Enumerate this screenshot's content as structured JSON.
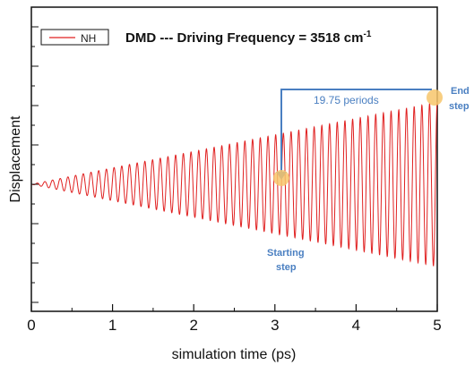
{
  "chart_data": {
    "type": "line",
    "title": "DMD --- Driving Frequency = 3518 cm",
    "title_superscript": "-1",
    "xlabel": "simulation time (ps)",
    "ylabel": "Displacement",
    "xlim": [
      0,
      5
    ],
    "x_ticks": [
      "0",
      "1",
      "2",
      "3",
      "4",
      "5"
    ],
    "y_tick_labels_visible": false,
    "legend": {
      "position": "top-left",
      "entries": [
        "NH"
      ]
    },
    "grid": false,
    "series": [
      {
        "name": "NH",
        "color": "#e02020",
        "kind": "driven oscillation with linearly growing amplitude",
        "x_start": 0,
        "x_end": 5,
        "oscillation_frequency_per_ps": 10.55,
        "relative_amplitude_start": 0,
        "relative_amplitude_end": 1
      }
    ],
    "annotations": {
      "period_label": "19.75 periods",
      "start_label_line1": "Starting",
      "start_label_line2": "step",
      "end_label_line1": "End",
      "end_label_line2": "step",
      "start_marker_x": 3.13,
      "end_marker_x": 4.98,
      "marker_color": "#f7c56b",
      "arrow_color": "#4a7fc1"
    }
  }
}
